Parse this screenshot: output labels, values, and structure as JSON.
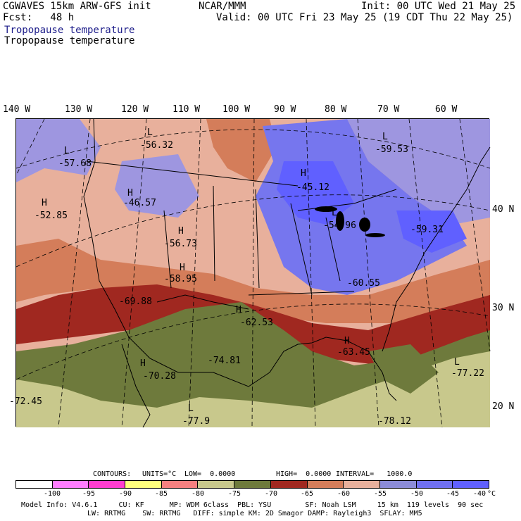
{
  "header": {
    "model": "CGWAVES 15km ARW-GFS init",
    "fcst": "Fcst:   48 h",
    "org": "NCAR/MMM",
    "init": "Init: 00 UTC Wed 21 May 25",
    "valid": "Valid: 00 UTC Fri 23 May 25 (19 CDT Thu 22 May 25)",
    "field1": "Tropopause temperature",
    "field2": "Tropopause temperature"
  },
  "lon_labels": [
    "140 W",
    "130 W",
    "120 W",
    "110 W",
    "100 W",
    "90 W",
    "80 W",
    "70 W",
    "60 W"
  ],
  "lat_labels": [
    "40 N",
    "30 N",
    "20 N"
  ],
  "map_labels": [
    {
      "type": "L",
      "value": "-56.32"
    },
    {
      "type": "L",
      "value": "-57.68"
    },
    {
      "type": "L",
      "value": "-59.53"
    },
    {
      "type": "H",
      "value": "-45.12"
    },
    {
      "type": "H",
      "value": "-46.57"
    },
    {
      "type": "H",
      "value": "-52.85"
    },
    {
      "type": "L",
      "value": "-54.96"
    },
    {
      "type": "",
      "value": "-59.31"
    },
    {
      "type": "H",
      "value": "-56.73"
    },
    {
      "type": "H",
      "value": "-58.95"
    },
    {
      "type": "",
      "value": "-69.88"
    },
    {
      "type": "",
      "value": "-60.55"
    },
    {
      "type": "H",
      "value": "-62.53"
    },
    {
      "type": "H",
      "value": "-63.45"
    },
    {
      "type": "",
      "value": "-74.81"
    },
    {
      "type": "H",
      "value": "-70.28"
    },
    {
      "type": "L",
      "value": "-77.22"
    },
    {
      "type": "",
      "value": "-72.45"
    },
    {
      "type": "L",
      "value": "-77.9"
    },
    {
      "type": "",
      "value": "-78.12"
    }
  ],
  "contour_info": {
    "contours": "CONTOURS:",
    "units": "UNITS=°C",
    "low": "LOW=  0.0000",
    "high": "HIGH=  0.0000",
    "interval": "INTERVAL=   1000.0"
  },
  "colorbar": {
    "colors": [
      "#ffffff",
      "#ff7dff",
      "#ff3dd0",
      "#ffff7d",
      "#f58080",
      "#c8c88c",
      "#6e7a3c",
      "#a02820",
      "#d47d5a",
      "#e8b09c",
      "#8c8cd8",
      "#7070f0",
      "#6060ff"
    ],
    "ticks": [
      "-100",
      "-95",
      "-90",
      "-85",
      "-80",
      "-75",
      "-70",
      "-65",
      "-60",
      "-55",
      "-50",
      "-45",
      "-40"
    ],
    "unit": "°C"
  },
  "footer": {
    "line1": "Model Info: V4.6.1     CU: KF      MP: WDM 6class  PBL: YSU        SF: Noah LSM     15 km  119 levels  90 sec",
    "line2": "LW: RRTMG    SW: RRTMG   DIFF: simple KM: 2D Smagor DAMP: Rayleigh3  SFLAY: MM5"
  }
}
